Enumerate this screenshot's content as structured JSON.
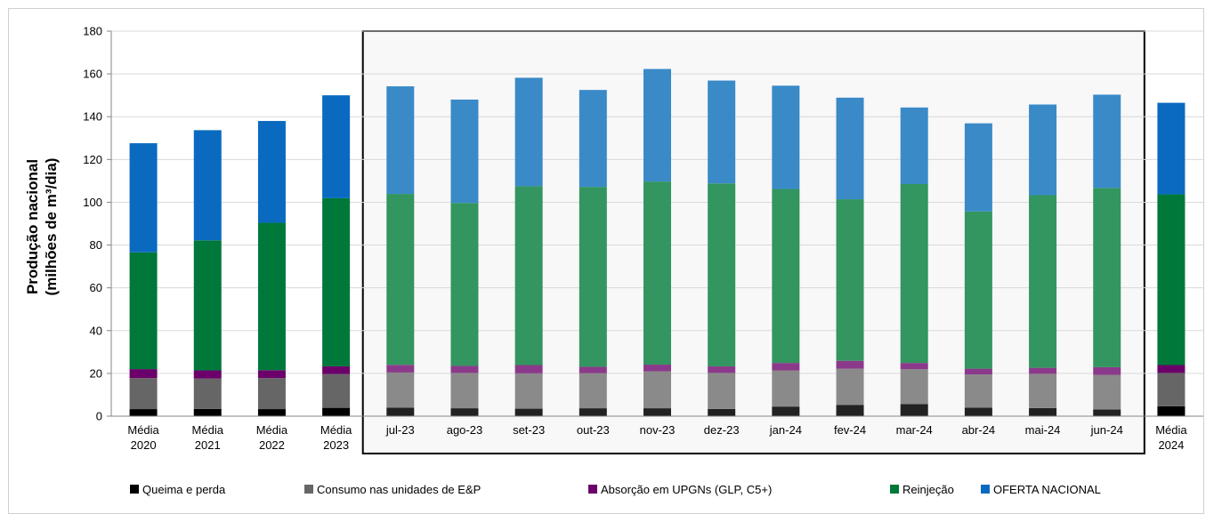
{
  "chart_data": {
    "type": "bar",
    "stacked": true,
    "title": "",
    "xlabel": "",
    "ylabel_lines": [
      "Produção nacional",
      "(milhões de m³/dia)"
    ],
    "ylim": [
      0,
      180
    ],
    "yticks": [
      0,
      20,
      40,
      60,
      80,
      100,
      120,
      140,
      160,
      180
    ],
    "grid": "horizontal",
    "legend_position": "bottom",
    "categories": [
      [
        "Média",
        "2020"
      ],
      [
        "Média",
        "2021"
      ],
      [
        "Média",
        "2022"
      ],
      [
        "Média",
        "2023"
      ],
      [
        "jul-23"
      ],
      [
        "ago-23"
      ],
      [
        "set-23"
      ],
      [
        "out-23"
      ],
      [
        "nov-23"
      ],
      [
        "dez-23"
      ],
      [
        "jan-24"
      ],
      [
        "fev-24"
      ],
      [
        "mar-24"
      ],
      [
        "abr-24"
      ],
      [
        "mai-24"
      ],
      [
        "jun-24"
      ],
      [
        "Média",
        "2024"
      ]
    ],
    "highlight_range": [
      "jul-23",
      "jun-24"
    ],
    "series": [
      {
        "name": "Queima e perda",
        "color": "#000000",
        "color_light": "#222222",
        "values": [
          3.3,
          3.4,
          3.3,
          3.9,
          4.0,
          3.7,
          3.5,
          3.7,
          3.7,
          3.4,
          4.5,
          5.3,
          5.7,
          4.0,
          3.8,
          3.1,
          4.6
        ]
      },
      {
        "name": "Consumo nas unidades de E&P",
        "color": "#666666",
        "color_light": "#8a8a8a",
        "values": [
          14.5,
          14.2,
          14.5,
          15.8,
          16.4,
          16.5,
          16.5,
          16.4,
          17.3,
          16.8,
          16.9,
          16.9,
          16.3,
          15.5,
          16.0,
          16.2,
          15.6
        ]
      },
      {
        "name": "Absorção em UPGNs (GLP, C5+)",
        "color": "#6b006b",
        "color_light": "#8b3a8b",
        "values": [
          4.2,
          3.8,
          3.7,
          3.6,
          3.6,
          3.3,
          3.9,
          3.0,
          3.1,
          3.1,
          3.5,
          3.7,
          2.9,
          2.7,
          2.8,
          3.6,
          3.7
        ]
      },
      {
        "name": "Reinjeção",
        "color": "#00783a",
        "color_light": "#33955f",
        "values": [
          54.6,
          60.8,
          68.9,
          78.6,
          79.9,
          76.2,
          83.6,
          84.1,
          85.6,
          85.5,
          81.3,
          75.5,
          83.6,
          73.5,
          80.7,
          83.8,
          79.8
        ]
      },
      {
        "name": "OFERTA NACIONAL",
        "color": "#0a6ac0",
        "color_light": "#3a8ac8",
        "values": [
          51.0,
          51.5,
          47.6,
          48.1,
          50.3,
          48.3,
          50.7,
          45.3,
          52.6,
          48.1,
          48.3,
          47.5,
          35.8,
          41.2,
          42.4,
          43.6,
          42.8
        ]
      }
    ]
  }
}
